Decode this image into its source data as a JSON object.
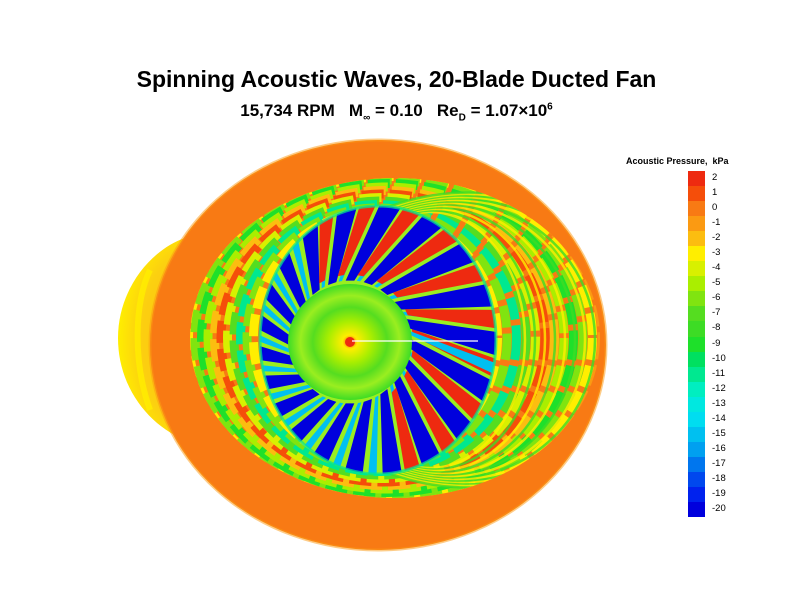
{
  "figure": {
    "title": "Spinning Acoustic Waves, 20-Blade Ducted Fan",
    "subtitle": {
      "rpm": "15,734 RPM",
      "mach_symbol": "M",
      "mach_sub": "∞",
      "mach_value": "= 0.10",
      "re_symbol": "Re",
      "re_sub": "D",
      "re_value": "= 1.07×10",
      "re_exp": "6"
    }
  },
  "legend": {
    "title": "Acoustic Pressure,  kPa",
    "levels": [
      {
        "label": "2",
        "color": "#ee2a10"
      },
      {
        "label": "1",
        "color": "#f54e0a"
      },
      {
        "label": "0",
        "color": "#f87a14"
      },
      {
        "label": "-1",
        "color": "#fb9a12"
      },
      {
        "label": "-2",
        "color": "#fcbd10"
      },
      {
        "label": "-3",
        "color": "#ffee00"
      },
      {
        "label": "-4",
        "color": "#d8f000"
      },
      {
        "label": "-5",
        "color": "#aaee00"
      },
      {
        "label": "-6",
        "color": "#80e410"
      },
      {
        "label": "-7",
        "color": "#55dd20"
      },
      {
        "label": "-8",
        "color": "#3ddc25"
      },
      {
        "label": "-9",
        "color": "#1ee02a"
      },
      {
        "label": "-10",
        "color": "#00e060"
      },
      {
        "label": "-11",
        "color": "#00e890"
      },
      {
        "label": "-12",
        "color": "#00eec0"
      },
      {
        "label": "-13",
        "color": "#00e8e0"
      },
      {
        "label": "-14",
        "color": "#00ddf0"
      },
      {
        "label": "-15",
        "color": "#00c0f0"
      },
      {
        "label": "-16",
        "color": "#00a0f0"
      },
      {
        "label": "-17",
        "color": "#0076ee"
      },
      {
        "label": "-18",
        "color": "#0048ee"
      },
      {
        "label": "-19",
        "color": "#0022ee"
      },
      {
        "label": "-20",
        "color": "#0000dd"
      }
    ]
  }
}
